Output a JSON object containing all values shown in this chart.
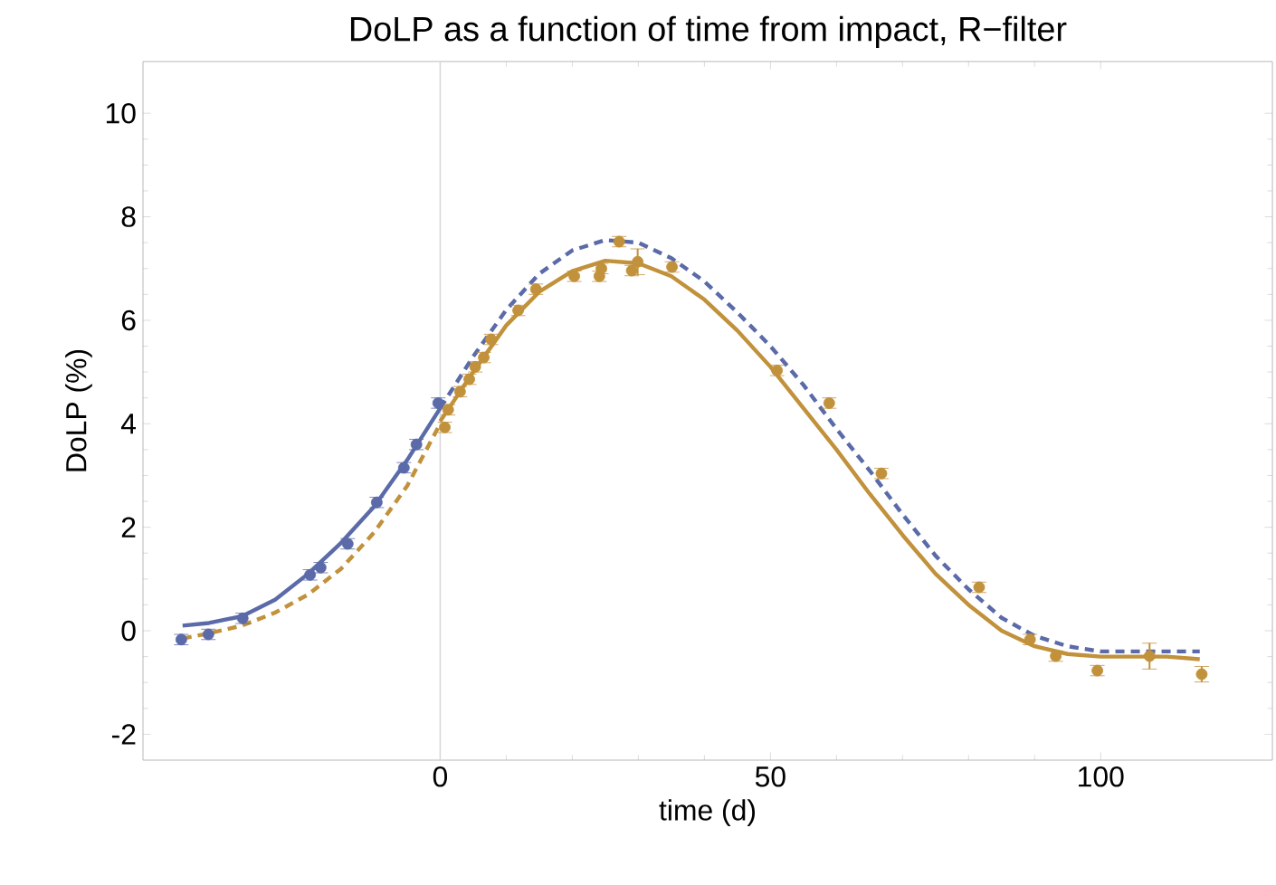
{
  "chart_data": {
    "type": "scatter",
    "title": "DoLP as a function of time from impact, R−filter",
    "xlabel": "time (d)",
    "ylabel": "DoLP  (%)",
    "xlim": [
      -45,
      126
    ],
    "ylim": [
      -2.5,
      11
    ],
    "xticks": [
      0,
      50,
      100
    ],
    "yticks": [
      -2,
      0,
      2,
      4,
      6,
      8,
      10
    ],
    "ref_lines": [
      {
        "axis": "x",
        "value": 0,
        "color": "#d9d9d9"
      }
    ],
    "series": [
      {
        "type": "line",
        "line_style": "solid",
        "marker": "none",
        "color": "#5b6aa8",
        "x": [
          -39,
          -35,
          -30,
          -25,
          -20,
          -15,
          -10,
          -5,
          0
        ],
        "values": [
          0.1,
          0.15,
          0.28,
          0.6,
          1.1,
          1.7,
          2.4,
          3.3,
          4.3
        ]
      },
      {
        "type": "line",
        "line_style": "dashed",
        "marker": "none",
        "color": "#5b6aa8",
        "x": [
          0,
          5,
          10,
          15,
          20,
          25,
          30,
          35,
          40,
          45,
          50,
          55,
          60,
          65,
          70,
          75,
          80,
          85,
          90,
          95,
          100,
          105,
          110,
          115
        ],
        "values": [
          4.3,
          5.3,
          6.2,
          6.9,
          7.35,
          7.55,
          7.5,
          7.2,
          6.75,
          6.15,
          5.5,
          4.75,
          3.9,
          3.1,
          2.25,
          1.45,
          0.8,
          0.25,
          -0.1,
          -0.3,
          -0.4,
          -0.4,
          -0.4,
          -0.4
        ]
      },
      {
        "type": "line",
        "line_style": "solid",
        "marker": "none",
        "color": "#c1913b",
        "x": [
          0,
          5,
          10,
          15,
          20,
          25,
          30,
          35,
          40,
          45,
          50,
          55,
          60,
          65,
          70,
          75,
          80,
          85,
          90,
          95,
          100,
          105,
          110,
          115
        ],
        "values": [
          4.05,
          5.0,
          5.9,
          6.55,
          6.95,
          7.15,
          7.1,
          6.85,
          6.4,
          5.8,
          5.1,
          4.3,
          3.5,
          2.65,
          1.85,
          1.1,
          0.5,
          0.0,
          -0.3,
          -0.45,
          -0.5,
          -0.5,
          -0.5,
          -0.55
        ]
      },
      {
        "type": "line",
        "line_style": "dashed",
        "marker": "none",
        "color": "#c1913b",
        "x": [
          -39,
          -35,
          -30,
          -25,
          -20,
          -15,
          -10,
          -5,
          0
        ],
        "values": [
          -0.15,
          -0.05,
          0.1,
          0.35,
          0.7,
          1.2,
          1.9,
          2.8,
          4.0
        ]
      },
      {
        "marker": "circle",
        "color": "#5b6aa8",
        "x": [
          -39.2,
          -35.1,
          -29.9,
          -19.7,
          -18.1,
          -14.0,
          -9.6,
          -5.5,
          -3.6,
          -0.3
        ],
        "values": [
          -0.17,
          -0.07,
          0.24,
          1.08,
          1.22,
          1.68,
          2.48,
          3.15,
          3.6,
          4.4
        ],
        "errors": [
          0.1,
          0.1,
          0.1,
          0.1,
          0.1,
          0.1,
          0.1,
          0.1,
          0.1,
          0.1
        ]
      },
      {
        "marker": "circle",
        "color": "#c1913b",
        "x": [
          0.7,
          1.2,
          3.0,
          4.4,
          5.3,
          6.6,
          7.7,
          11.8,
          14.5,
          20.3,
          24.1,
          24.4,
          27.1,
          29.0,
          29.9,
          35.1,
          51.0,
          58.9,
          66.8,
          81.6,
          89.3,
          93.2,
          99.5,
          107.4,
          115.3
        ],
        "values": [
          3.93,
          4.27,
          4.62,
          4.86,
          5.1,
          5.28,
          5.63,
          6.19,
          6.6,
          6.85,
          6.85,
          7.0,
          7.52,
          6.96,
          7.13,
          7.03,
          5.03,
          4.4,
          3.04,
          0.84,
          -0.17,
          -0.49,
          -0.77,
          -0.49,
          -0.84
        ],
        "errors": [
          0.1,
          0.1,
          0.1,
          0.1,
          0.1,
          0.1,
          0.1,
          0.1,
          0.1,
          0.1,
          0.1,
          0.1,
          0.1,
          0.1,
          0.25,
          0.1,
          0.1,
          0.1,
          0.1,
          0.1,
          0.1,
          0.1,
          0.1,
          0.25,
          0.15
        ]
      }
    ]
  }
}
